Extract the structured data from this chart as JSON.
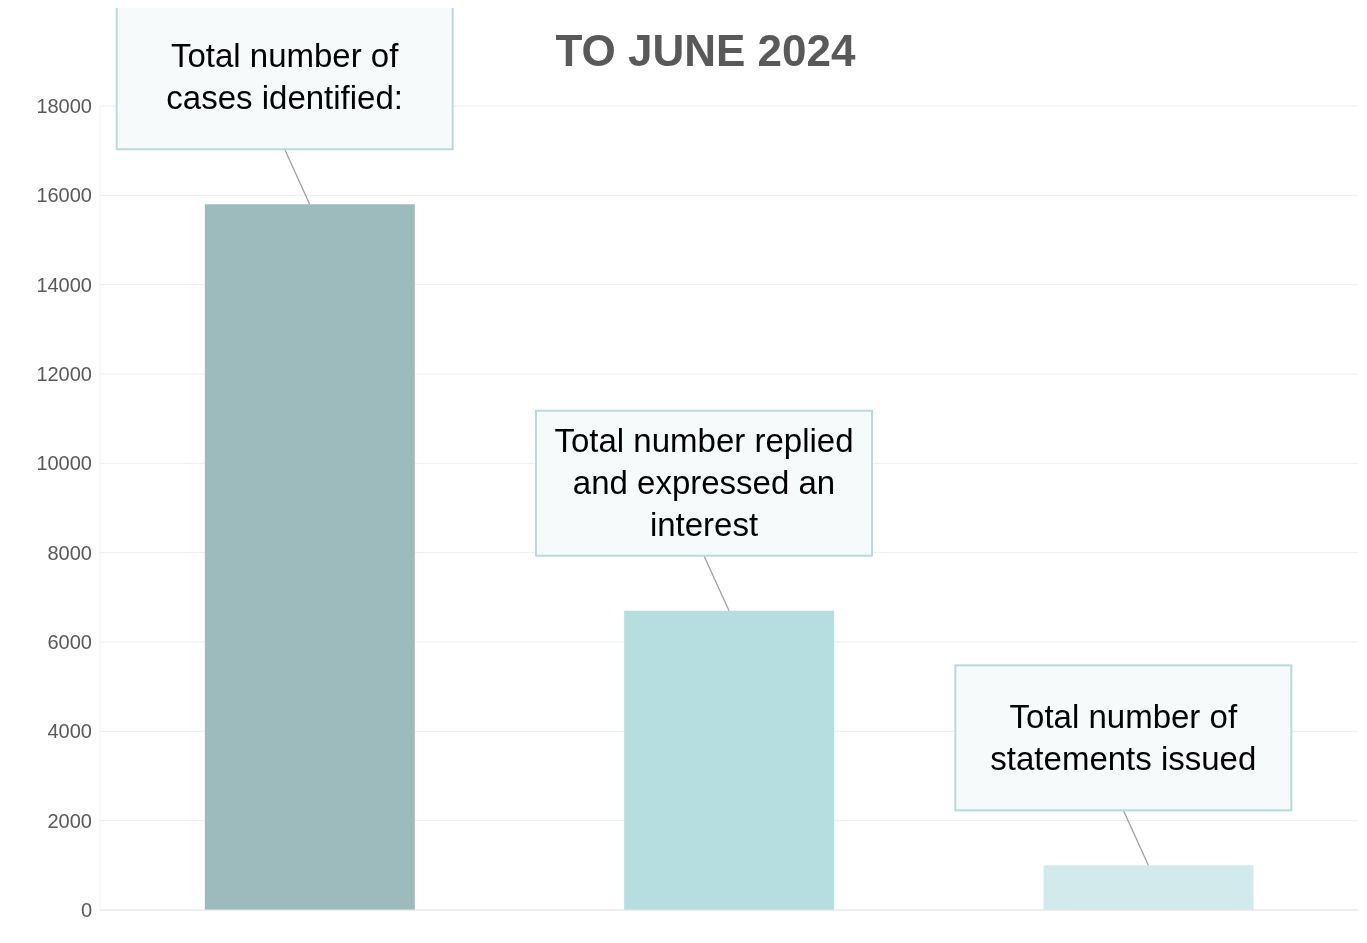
{
  "chart_data": {
    "type": "bar",
    "title": "TO JUNE 2024",
    "categories": [
      null,
      null,
      null
    ],
    "values": [
      15800,
      6700,
      1000
    ],
    "colors": [
      "#9dbbbd",
      "#b6dde0",
      "#d3eaec"
    ],
    "ylim": [
      0,
      18000
    ],
    "yticks": [
      0,
      2000,
      4000,
      6000,
      8000,
      10000,
      12000,
      14000,
      16000,
      18000
    ],
    "grid": "y",
    "legend": false,
    "annotations": [
      {
        "text": "Total number of cases identified:",
        "y": 15800
      },
      {
        "text": "Total number replied and expressed an interest",
        "y": 6700
      },
      {
        "text": "Total number of statements issued",
        "y": 1000
      }
    ]
  }
}
